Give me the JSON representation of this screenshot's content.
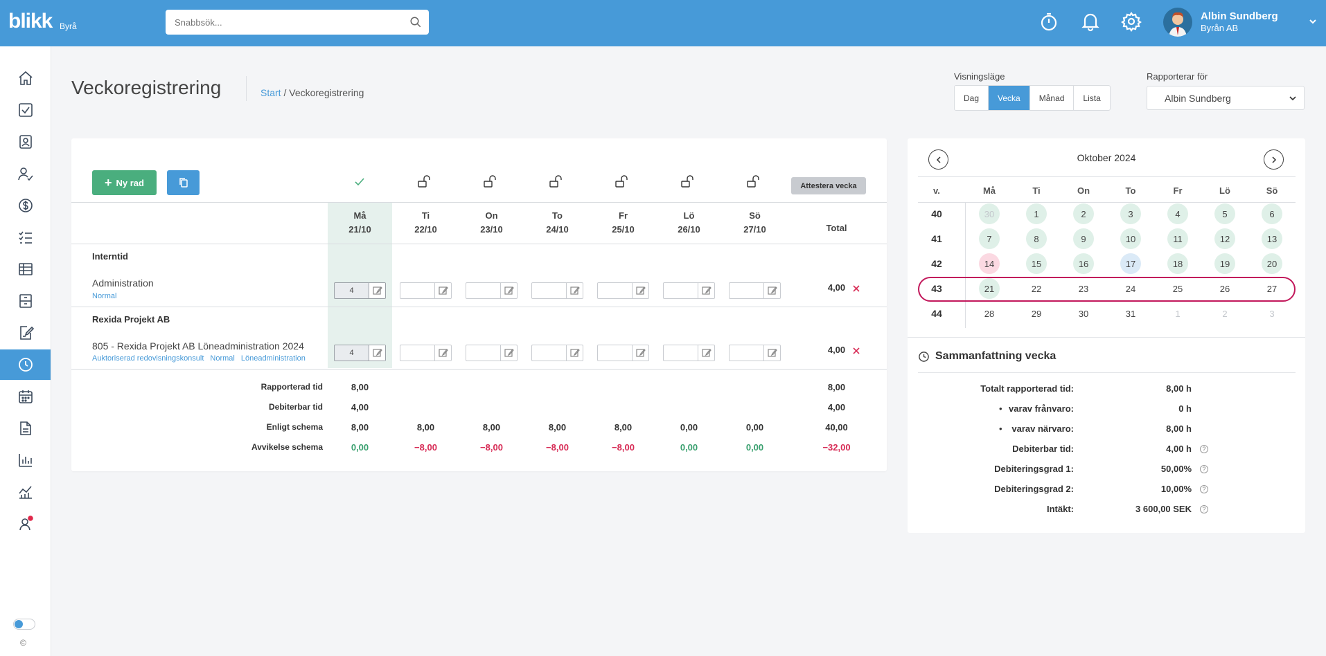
{
  "app": {
    "logo": "blikk",
    "logo_sub": "Byrå",
    "search_placeholder": "Snabbsök...",
    "user": {
      "name": "Albin Sundberg",
      "org": "Byrån AB"
    },
    "copyright": "©"
  },
  "page": {
    "title": "Veckoregistrering",
    "breadcrumb": {
      "start": "Start",
      "sep": " / ",
      "current": "Veckoregistrering"
    }
  },
  "view_mode": {
    "label": "Visningsläge",
    "options": [
      "Dag",
      "Vecka",
      "Månad",
      "Lista"
    ],
    "active": "Vecka"
  },
  "report_for": {
    "label": "Rapporterar för",
    "value": "Albin Sundberg"
  },
  "toolbar": {
    "new_row": "Ny rad",
    "attest": "Attestera vecka"
  },
  "days": [
    {
      "name": "Må",
      "date": "21/10"
    },
    {
      "name": "Ti",
      "date": "22/10"
    },
    {
      "name": "On",
      "date": "23/10"
    },
    {
      "name": "To",
      "date": "24/10"
    },
    {
      "name": "Fr",
      "date": "25/10"
    },
    {
      "name": "Lö",
      "date": "26/10"
    },
    {
      "name": "Sö",
      "date": "27/10"
    }
  ],
  "total_label": "Total",
  "groups": [
    {
      "title": "Interntid",
      "row": {
        "name": "Administration",
        "tags": [
          "Normal"
        ],
        "values": [
          "4",
          "",
          "",
          "",
          "",
          "",
          ""
        ],
        "total": "4,00"
      }
    },
    {
      "title": "Rexida Projekt AB",
      "row": {
        "name": "805 - Rexida Projekt AB Löneadministration 2024",
        "tags": [
          "Auktoriserad redovisningskonsult",
          "Normal",
          "Löneadministration"
        ],
        "values": [
          "4",
          "",
          "",
          "",
          "",
          "",
          ""
        ],
        "total": "4,00"
      }
    }
  ],
  "summary": [
    {
      "label": "Rapporterad tid",
      "values": [
        "8,00",
        "",
        "",
        "",
        "",
        "",
        ""
      ],
      "total": "8,00"
    },
    {
      "label": "Debiterbar tid",
      "values": [
        "4,00",
        "",
        "",
        "",
        "",
        "",
        ""
      ],
      "total": "4,00"
    },
    {
      "label": "Enligt schema",
      "values": [
        "8,00",
        "8,00",
        "8,00",
        "8,00",
        "8,00",
        "0,00",
        "0,00"
      ],
      "total": "40,00"
    },
    {
      "label": "Avvikelse schema",
      "values": [
        "0,00",
        "−8,00",
        "−8,00",
        "−8,00",
        "−8,00",
        "0,00",
        "0,00"
      ],
      "total": "−32,00"
    }
  ],
  "colors": {
    "accent": "#479ad8",
    "green": "#4aae7e",
    "red": "#d72b55",
    "selected_week_ring": "#c2185b"
  },
  "calendar": {
    "month": "Oktober 2024",
    "week_label": "v.",
    "day_names": [
      "Må",
      "Ti",
      "On",
      "To",
      "Fr",
      "Lö",
      "Sö"
    ],
    "weeks": [
      {
        "week": "40",
        "days": [
          {
            "d": "30",
            "s": "faded-g"
          },
          {
            "d": "1",
            "s": "g"
          },
          {
            "d": "2",
            "s": "g"
          },
          {
            "d": "3",
            "s": "g"
          },
          {
            "d": "4",
            "s": "g"
          },
          {
            "d": "5",
            "s": "g"
          },
          {
            "d": "6",
            "s": "g"
          }
        ]
      },
      {
        "week": "41",
        "days": [
          {
            "d": "7",
            "s": "g"
          },
          {
            "d": "8",
            "s": "g"
          },
          {
            "d": "9",
            "s": "g"
          },
          {
            "d": "10",
            "s": "g"
          },
          {
            "d": "11",
            "s": "g"
          },
          {
            "d": "12",
            "s": "g"
          },
          {
            "d": "13",
            "s": "g"
          }
        ]
      },
      {
        "week": "42",
        "days": [
          {
            "d": "14",
            "s": "today"
          },
          {
            "d": "15",
            "s": "g"
          },
          {
            "d": "16",
            "s": "g"
          },
          {
            "d": "17",
            "s": "sel"
          },
          {
            "d": "18",
            "s": "g"
          },
          {
            "d": "19",
            "s": "g"
          },
          {
            "d": "20",
            "s": "g"
          }
        ]
      },
      {
        "week": "43",
        "days": [
          {
            "d": "21",
            "s": "g"
          },
          {
            "d": "22",
            "s": ""
          },
          {
            "d": "23",
            "s": ""
          },
          {
            "d": "24",
            "s": ""
          },
          {
            "d": "25",
            "s": ""
          },
          {
            "d": "26",
            "s": ""
          },
          {
            "d": "27",
            "s": ""
          }
        ]
      },
      {
        "week": "44",
        "days": [
          {
            "d": "28",
            "s": ""
          },
          {
            "d": "29",
            "s": ""
          },
          {
            "d": "30",
            "s": ""
          },
          {
            "d": "31",
            "s": ""
          },
          {
            "d": "1",
            "s": "faded"
          },
          {
            "d": "2",
            "s": "faded"
          },
          {
            "d": "3",
            "s": "faded"
          }
        ]
      }
    ]
  },
  "week_summary": {
    "title": "Sammanfattning vecka",
    "rows": [
      {
        "label": "Totalt rapporterad tid:",
        "value": "8,00 h",
        "help": false,
        "bullet": false
      },
      {
        "label": "varav frånvaro:",
        "value": "0 h",
        "help": false,
        "bullet": true
      },
      {
        "label": "varav närvaro:",
        "value": "8,00 h",
        "help": false,
        "bullet": true
      },
      {
        "label": "Debiterbar tid:",
        "value": "4,00 h",
        "help": true,
        "bullet": false
      },
      {
        "label": "Debiteringsgrad 1:",
        "value": "50,00%",
        "help": true,
        "bullet": false
      },
      {
        "label": "Debiteringsgrad 2:",
        "value": "10,00%",
        "help": true,
        "bullet": false
      },
      {
        "label": "Intäkt:",
        "value": "3 600,00 SEK",
        "help": true,
        "bullet": false
      }
    ],
    "help_glyph": "?",
    "bullet_glyph": "•"
  }
}
